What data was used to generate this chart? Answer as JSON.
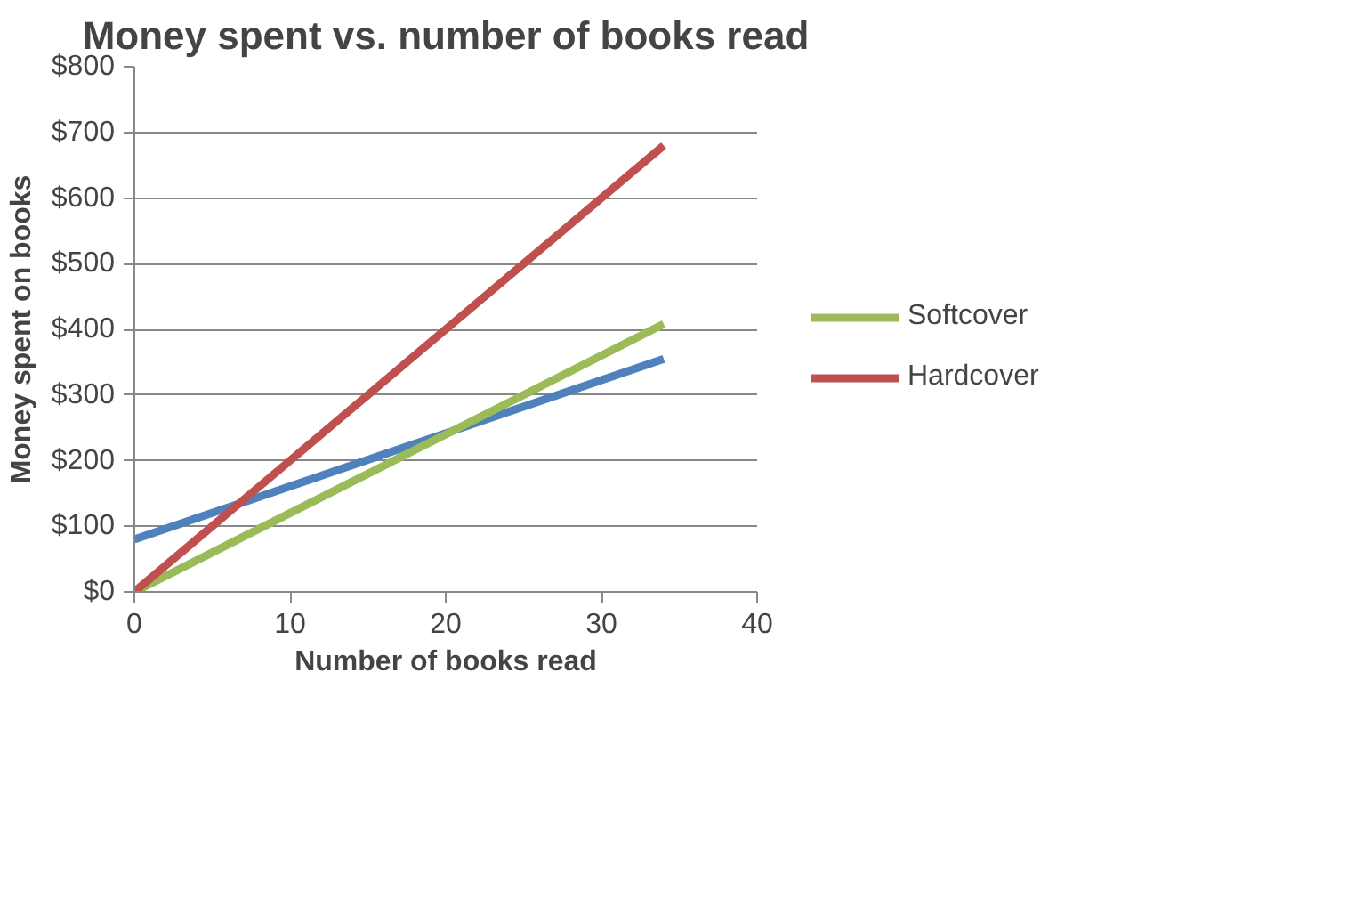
{
  "chart_data": {
    "type": "line",
    "title": "Money spent vs. number of books read",
    "xlabel": "Number of books read",
    "ylabel": "Money spent on books",
    "x": [
      0,
      34
    ],
    "series": [
      {
        "color": "#4f81bd",
        "values": [
          80,
          355
        ]
      },
      {
        "name": "Softcover",
        "color": "#9bbb59",
        "values": [
          0,
          408
        ]
      },
      {
        "name": "Hardcover",
        "color": "#c0504d",
        "values": [
          0,
          680
        ]
      }
    ],
    "xlim": [
      0,
      40
    ],
    "xticks": [
      0,
      10,
      20,
      30,
      40
    ],
    "ylim": [
      0,
      800
    ],
    "yticks": [
      {
        "value": 0,
        "label": "$0"
      },
      {
        "value": 100,
        "label": "$100"
      },
      {
        "value": 200,
        "label": "$200"
      },
      {
        "value": 300,
        "label": "$300"
      },
      {
        "value": 400,
        "label": "$400"
      },
      {
        "value": 500,
        "label": "$500"
      },
      {
        "value": 600,
        "label": "$600"
      },
      {
        "value": 700,
        "label": "$700"
      },
      {
        "value": 800,
        "label": "$800"
      }
    ],
    "grid": "y",
    "legend": "right",
    "marker": "none",
    "line_style": "solid"
  }
}
